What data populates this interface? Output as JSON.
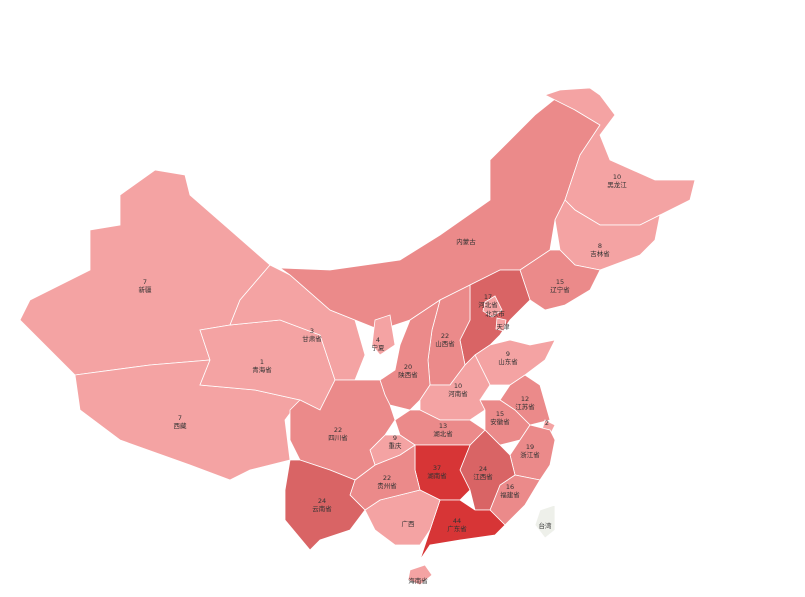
{
  "colors": {
    "light": "#f4a3a3",
    "medium": "#eb8a8a",
    "dark": "#d96465",
    "darkest": "#d73536",
    "none": "#eef0ea"
  },
  "provinces": [
    {
      "id": "xinjiang",
      "name": "新疆",
      "value": "7",
      "level": "light"
    },
    {
      "id": "xizang",
      "name": "西藏",
      "value": "7",
      "level": "light"
    },
    {
      "id": "qinghai",
      "name": "青海省",
      "value": "1",
      "level": "light"
    },
    {
      "id": "gansu",
      "name": "甘肃省",
      "value": "3",
      "level": "light"
    },
    {
      "id": "neimenggu",
      "name": "内蒙古",
      "value": "",
      "level": "medium"
    },
    {
      "id": "heilongjiang",
      "name": "黑龙江",
      "value": "10",
      "level": "light"
    },
    {
      "id": "jilin",
      "name": "吉林省",
      "value": "8",
      "level": "light"
    },
    {
      "id": "liaoning",
      "name": "辽宁省",
      "value": "15",
      "level": "medium"
    },
    {
      "id": "hebei",
      "name": "河北省",
      "value": "17",
      "level": "dark"
    },
    {
      "id": "beijing",
      "name": "北京市",
      "value": "",
      "level": "light"
    },
    {
      "id": "tianjin",
      "name": "天津",
      "value": "",
      "level": "light"
    },
    {
      "id": "shanxi",
      "name": "山西省",
      "value": "22",
      "level": "medium"
    },
    {
      "id": "shaanxi",
      "name": "陕西省",
      "value": "20",
      "level": "medium"
    },
    {
      "id": "ningxia",
      "name": "宁夏",
      "value": "4",
      "level": "light"
    },
    {
      "id": "shandong",
      "name": "山东省",
      "value": "9",
      "level": "light"
    },
    {
      "id": "henan",
      "name": "河南省",
      "value": "10",
      "level": "light"
    },
    {
      "id": "jiangsu",
      "name": "江苏省",
      "value": "12",
      "level": "medium"
    },
    {
      "id": "anhui",
      "name": "安徽省",
      "value": "15",
      "level": "medium"
    },
    {
      "id": "shanghai",
      "name": "",
      "value": "2",
      "level": "light"
    },
    {
      "id": "zhejiang",
      "name": "浙江省",
      "value": "19",
      "level": "medium"
    },
    {
      "id": "fujian",
      "name": "福建省",
      "value": "16",
      "level": "medium"
    },
    {
      "id": "jiangxi",
      "name": "江西省",
      "value": "24",
      "level": "dark"
    },
    {
      "id": "hubei",
      "name": "湖北省",
      "value": "13",
      "level": "medium"
    },
    {
      "id": "hunan",
      "name": "湖南省",
      "value": "37",
      "level": "darkest"
    },
    {
      "id": "guangdong",
      "name": "广东省",
      "value": "44",
      "level": "darkest"
    },
    {
      "id": "hainan",
      "name": "海南省",
      "value": "",
      "level": "light"
    },
    {
      "id": "guangxi",
      "name": "广西",
      "value": "",
      "level": "light"
    },
    {
      "id": "guizhou",
      "name": "贵州省",
      "value": "22",
      "level": "medium"
    },
    {
      "id": "chongqing",
      "name": "重庆",
      "value": "9",
      "level": "light"
    },
    {
      "id": "sichuan",
      "name": "四川省",
      "value": "22",
      "level": "medium"
    },
    {
      "id": "yunnan",
      "name": "云南省",
      "value": "24",
      "level": "dark"
    },
    {
      "id": "taiwan",
      "name": "台湾",
      "value": "",
      "level": "none"
    }
  ]
}
